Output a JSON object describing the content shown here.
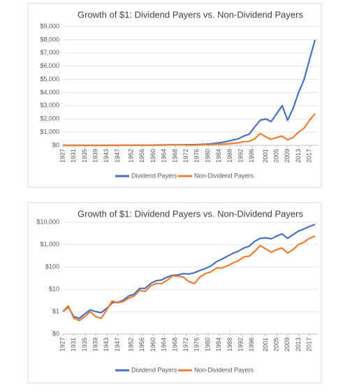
{
  "chart_data": [
    {
      "type": "line",
      "title": "Growth of $1: Dividend Payers vs. Non-Dividend Payers",
      "x": [
        1927,
        1929,
        1931,
        1933,
        1935,
        1937,
        1939,
        1941,
        1943,
        1945,
        1947,
        1949,
        1951,
        1953,
        1955,
        1957,
        1959,
        1961,
        1963,
        1965,
        1967,
        1969,
        1971,
        1973,
        1975,
        1977,
        1979,
        1981,
        1983,
        1985,
        1987,
        1989,
        1991,
        1993,
        1995,
        1997,
        1999,
        2001,
        2003,
        2005,
        2007,
        2009,
        2011,
        2013,
        2015,
        2017,
        2019
      ],
      "series": [
        {
          "name": "Dividend Payers",
          "color": "#4472c4",
          "values": [
            1,
            1.6,
            0.6,
            0.5,
            0.8,
            1.2,
            1,
            0.9,
            1.4,
            2.5,
            2.6,
            3.2,
            5,
            6,
            11,
            11,
            18,
            24,
            26,
            35,
            42,
            44,
            50,
            48,
            55,
            70,
            85,
            110,
            170,
            220,
            300,
            400,
            500,
            700,
            850,
            1400,
            1900,
            2000,
            1800,
            2400,
            3000,
            1900,
            2800,
            4000,
            5000,
            6500,
            8000
          ]
        },
        {
          "name": "Non-Dividend Payers",
          "color": "#ed7d31",
          "values": [
            1,
            1.8,
            0.5,
            0.4,
            0.6,
            1,
            0.6,
            0.5,
            1.2,
            3,
            2.5,
            2.8,
            4,
            5,
            9,
            8,
            14,
            18,
            18,
            25,
            40,
            38,
            35,
            22,
            18,
            35,
            50,
            60,
            90,
            90,
            110,
            150,
            190,
            280,
            300,
            500,
            900,
            650,
            450,
            600,
            700,
            420,
            600,
            1000,
            1300,
            1900,
            2400
          ]
        }
      ],
      "xlim": [
        1927,
        2020
      ],
      "xticks": [
        1927,
        1931,
        1935,
        1939,
        1943,
        1947,
        1952,
        1956,
        1960,
        1964,
        1968,
        1972,
        1976,
        1980,
        1984,
        1988,
        1992,
        1996,
        2001,
        2005,
        2009,
        2013,
        2017
      ],
      "ylim": [
        0,
        9000
      ],
      "yticks": [
        {
          "value": 0,
          "label": "$0"
        },
        {
          "value": 1000,
          "label": "$1,000"
        },
        {
          "value": 2000,
          "label": "$2,000"
        },
        {
          "value": 3000,
          "label": "$3,000"
        },
        {
          "value": 4000,
          "label": "$4,000"
        },
        {
          "value": 5000,
          "label": "$5,000"
        },
        {
          "value": 6000,
          "label": "$6,000"
        },
        {
          "value": 7000,
          "label": "$7,000"
        },
        {
          "value": 8000,
          "label": "$8,000"
        },
        {
          "value": 9000,
          "label": "$9,000"
        }
      ],
      "grid": true,
      "log_scale": false,
      "legend": "bottom"
    },
    {
      "type": "line",
      "title": "Growth of $1: Dividend Payers vs. Non-Dividend Payers",
      "x": [
        1927,
        1929,
        1931,
        1933,
        1935,
        1937,
        1939,
        1941,
        1943,
        1945,
        1947,
        1949,
        1951,
        1953,
        1955,
        1957,
        1959,
        1961,
        1963,
        1965,
        1967,
        1969,
        1971,
        1973,
        1975,
        1977,
        1979,
        1981,
        1983,
        1985,
        1987,
        1989,
        1991,
        1993,
        1995,
        1997,
        1999,
        2001,
        2003,
        2005,
        2007,
        2009,
        2011,
        2013,
        2015,
        2017,
        2019
      ],
      "series": [
        {
          "name": "Dividend Payers",
          "color": "#4472c4",
          "values": [
            1,
            1.6,
            0.6,
            0.5,
            0.8,
            1.2,
            1,
            0.9,
            1.4,
            2.5,
            2.6,
            3.2,
            5,
            6,
            11,
            11,
            18,
            24,
            26,
            35,
            42,
            44,
            50,
            48,
            55,
            70,
            85,
            110,
            170,
            220,
            300,
            400,
            500,
            700,
            850,
            1400,
            1900,
            2000,
            1800,
            2400,
            3000,
            1900,
            2800,
            4000,
            5000,
            6500,
            8000
          ]
        },
        {
          "name": "Non-Dividend Payers",
          "color": "#ed7d31",
          "values": [
            1,
            1.8,
            0.5,
            0.4,
            0.6,
            1,
            0.6,
            0.5,
            1.2,
            3,
            2.5,
            2.8,
            4,
            5,
            9,
            8,
            14,
            18,
            18,
            25,
            40,
            38,
            35,
            22,
            18,
            35,
            50,
            60,
            90,
            90,
            110,
            150,
            190,
            280,
            300,
            500,
            900,
            650,
            450,
            600,
            700,
            420,
            600,
            1000,
            1300,
            1900,
            2400
          ]
        }
      ],
      "xlim": [
        1927,
        2020
      ],
      "xticks": [
        1927,
        1931,
        1935,
        1939,
        1943,
        1947,
        1952,
        1956,
        1960,
        1964,
        1968,
        1972,
        1976,
        1980,
        1984,
        1988,
        1992,
        1996,
        2001,
        2005,
        2009,
        2013,
        2017
      ],
      "ylim": [
        0.1,
        10000
      ],
      "yticks": [
        {
          "value": 0.1,
          "label": "$0"
        },
        {
          "value": 1,
          "label": "$1"
        },
        {
          "value": 10,
          "label": "$10"
        },
        {
          "value": 100,
          "label": "$100"
        },
        {
          "value": 1000,
          "label": "$1,000"
        },
        {
          "value": 10000,
          "label": "$10,000"
        }
      ],
      "grid": true,
      "log_scale": true,
      "legend": "bottom"
    }
  ]
}
